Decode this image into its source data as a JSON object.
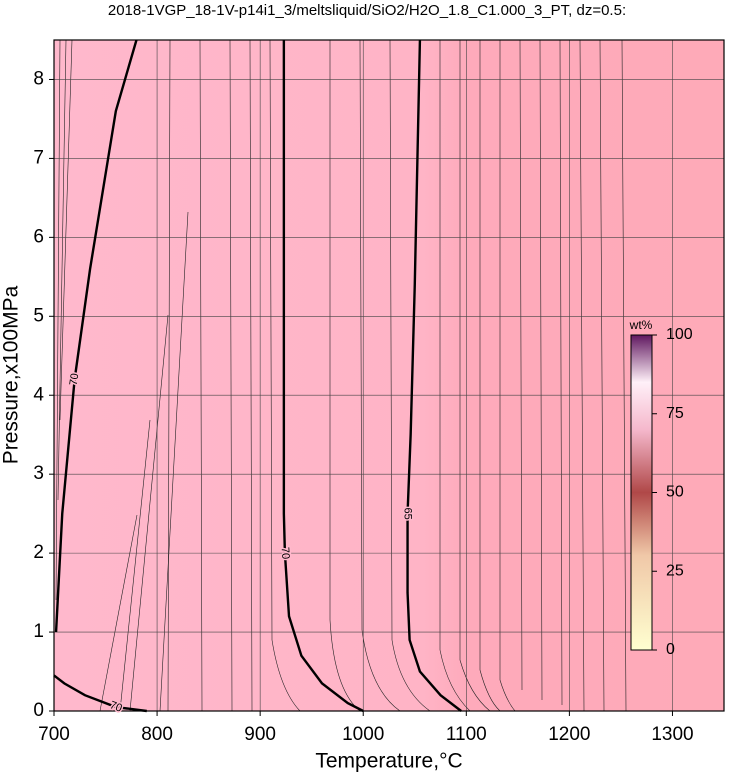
{
  "chart_data": {
    "type": "contour",
    "title": "2018-1VGP_18-1V-p14i1_3/meltsliquid/SiO2/H2O_1.8_C1.000_3_PT, dz=0.5:",
    "x_label": "Temperature,°C",
    "y_label": "Pressure,x100MPa",
    "xlim": [
      700,
      1350
    ],
    "ylim": [
      0,
      8.5
    ],
    "xticks": [
      700,
      800,
      900,
      1000,
      1100,
      1200,
      1300
    ],
    "yticks": [
      0,
      1,
      2,
      3,
      4,
      5,
      6,
      7,
      8
    ],
    "grid": true,
    "contours": [
      {
        "level": 70,
        "x": [
          702,
          708,
          720,
          735,
          745,
          760,
          780
        ],
        "y": [
          1.0,
          2.5,
          4.2,
          5.6,
          6.4,
          7.6,
          8.5
        ]
      },
      {
        "level": 70,
        "x": [
          790,
          760,
          730,
          710,
          700
        ],
        "y": [
          0,
          0.05,
          0.2,
          0.35,
          0.45
        ]
      },
      {
        "level": 70,
        "x": [
          923,
          923,
          923,
          924,
          928,
          940,
          960,
          985,
          1000
        ],
        "y": [
          8.5,
          5.4,
          2.5,
          2,
          1.2,
          0.7,
          0.35,
          0.1,
          0
        ]
      },
      {
        "level": 65,
        "x": [
          1055,
          1050,
          1046,
          1043,
          1043,
          1045,
          1055,
          1075,
          1095
        ],
        "y": [
          8.5,
          5.4,
          3.5,
          2.5,
          1.5,
          0.9,
          0.5,
          0.2,
          0
        ]
      }
    ],
    "colorbar": {
      "label": "wt%",
      "lim": [
        0,
        100
      ],
      "ticks": [
        0,
        25,
        50,
        75,
        100
      ]
    }
  }
}
